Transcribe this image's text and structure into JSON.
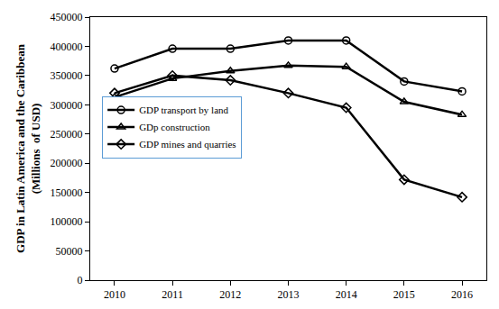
{
  "chart_data": {
    "type": "line",
    "y_label": "GDP in Latin America and the Caribbean\n(Millions  of USD)",
    "categories": [
      "2010",
      "2011",
      "2012",
      "2013",
      "2014",
      "2015",
      "2016"
    ],
    "series": [
      {
        "name": "GDP transport by land",
        "color": "#000000",
        "marker": "circle-open",
        "line_style": "solid",
        "values": [
          362000,
          396000,
          396000,
          410000,
          410000,
          340000,
          323000
        ]
      },
      {
        "name": "GDp construction",
        "color": "#000000",
        "marker": "triangle-up-open",
        "line_style": "solid",
        "values": [
          313000,
          345000,
          358000,
          367000,
          365000,
          305000,
          283000
        ]
      },
      {
        "name": "GDP mines and quarries",
        "color": "#000000",
        "marker": "diamond-open",
        "line_style": "solid",
        "values": [
          320000,
          350000,
          342000,
          320000,
          295000,
          172000,
          142000
        ]
      }
    ],
    "ylim": [
      0,
      450000
    ],
    "yticks": [
      0,
      50000,
      100000,
      150000,
      200000,
      250000,
      300000,
      350000,
      400000,
      450000
    ],
    "grid": false,
    "legend": "left"
  }
}
